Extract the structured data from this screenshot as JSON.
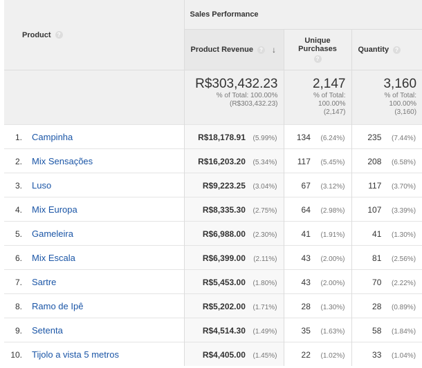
{
  "header": {
    "product_label": "Product",
    "group_label": "Sales Performance",
    "revenue_label": "Product Revenue",
    "unique_label_line1": "Unique",
    "unique_label_line2": "Purchases",
    "quantity_label": "Quantity",
    "help_glyph": "?",
    "sort_glyph": "↓"
  },
  "totals": {
    "revenue": {
      "value": "R$303,432.23",
      "pct_line": "% of Total: 100.00%",
      "abs_line": "(R$303,432.23)"
    },
    "unique": {
      "value": "2,147",
      "pct_line1": "% of Total:",
      "pct_line2": "100.00%",
      "abs_line": "(2,147)"
    },
    "quantity": {
      "value": "3,160",
      "pct_line1": "% of Total:",
      "pct_line2": "100.00%",
      "abs_line": "(3,160)"
    }
  },
  "rows": [
    {
      "rank": "1.",
      "name": "Campinha",
      "revenue": "R$18,178.91",
      "revenue_pct": "(5.99%)",
      "unique": "134",
      "unique_pct": "(6.24%)",
      "qty": "235",
      "qty_pct": "(7.44%)"
    },
    {
      "rank": "2.",
      "name": "Mix Sensações",
      "revenue": "R$16,203.20",
      "revenue_pct": "(5.34%)",
      "unique": "117",
      "unique_pct": "(5.45%)",
      "qty": "208",
      "qty_pct": "(6.58%)"
    },
    {
      "rank": "3.",
      "name": "Luso",
      "revenue": "R$9,223.25",
      "revenue_pct": "(3.04%)",
      "unique": "67",
      "unique_pct": "(3.12%)",
      "qty": "117",
      "qty_pct": "(3.70%)"
    },
    {
      "rank": "4.",
      "name": "Mix Europa",
      "revenue": "R$8,335.30",
      "revenue_pct": "(2.75%)",
      "unique": "64",
      "unique_pct": "(2.98%)",
      "qty": "107",
      "qty_pct": "(3.39%)"
    },
    {
      "rank": "5.",
      "name": "Gameleira",
      "revenue": "R$6,988.00",
      "revenue_pct": "(2.30%)",
      "unique": "41",
      "unique_pct": "(1.91%)",
      "qty": "41",
      "qty_pct": "(1.30%)"
    },
    {
      "rank": "6.",
      "name": "Mix Escala",
      "revenue": "R$6,399.00",
      "revenue_pct": "(2.11%)",
      "unique": "43",
      "unique_pct": "(2.00%)",
      "qty": "81",
      "qty_pct": "(2.56%)"
    },
    {
      "rank": "7.",
      "name": "Sartre",
      "revenue": "R$5,453.00",
      "revenue_pct": "(1.80%)",
      "unique": "43",
      "unique_pct": "(2.00%)",
      "qty": "70",
      "qty_pct": "(2.22%)"
    },
    {
      "rank": "8.",
      "name": "Ramo de Ipê",
      "revenue": "R$5,202.00",
      "revenue_pct": "(1.71%)",
      "unique": "28",
      "unique_pct": "(1.30%)",
      "qty": "28",
      "qty_pct": "(0.89%)"
    },
    {
      "rank": "9.",
      "name": "Setenta",
      "revenue": "R$4,514.30",
      "revenue_pct": "(1.49%)",
      "unique": "35",
      "unique_pct": "(1.63%)",
      "qty": "58",
      "qty_pct": "(1.84%)"
    },
    {
      "rank": "10.",
      "name": "Tijolo a vista 5 metros",
      "revenue": "R$4,405.00",
      "revenue_pct": "(1.45%)",
      "unique": "22",
      "unique_pct": "(1.02%)",
      "qty": "33",
      "qty_pct": "(1.04%)"
    }
  ]
}
